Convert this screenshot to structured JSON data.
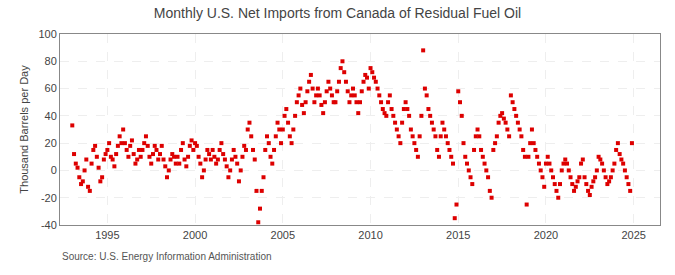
{
  "chart_data": {
    "type": "scatter",
    "title": "Monthly U.S. Net Imports from Canada of Residual Fuel Oil",
    "y_label": "Thousand Barrels per Day",
    "annotations": [
      "Source: U.S. Energy Information Administration"
    ],
    "color": "#DD0000",
    "marker": "square",
    "grid": true,
    "xlim": [
      1992.3,
      2026.5
    ],
    "xticks": [
      1995,
      2000,
      2005,
      2010,
      2015,
      2020,
      2025
    ],
    "ylim": [
      -40,
      100
    ],
    "yticks": [
      -40,
      -20,
      0,
      20,
      40,
      60,
      80,
      100
    ],
    "x": [
      1993.0,
      1993.1,
      1993.2,
      1993.3,
      1993.4,
      1993.5,
      1993.6,
      1993.7,
      1993.8,
      1993.9,
      1994.0,
      1994.1,
      1994.2,
      1994.3,
      1994.4,
      1994.5,
      1994.6,
      1994.7,
      1994.8,
      1994.9,
      1995.0,
      1995.1,
      1995.2,
      1995.3,
      1995.4,
      1995.5,
      1995.6,
      1995.7,
      1995.8,
      1995.9,
      1996.0,
      1996.1,
      1996.2,
      1996.3,
      1996.4,
      1996.5,
      1996.6,
      1996.7,
      1996.8,
      1996.9,
      1997.0,
      1997.1,
      1997.2,
      1997.3,
      1997.4,
      1997.5,
      1997.6,
      1997.7,
      1997.8,
      1997.9,
      1998.0,
      1998.1,
      1998.2,
      1998.3,
      1998.4,
      1998.5,
      1998.6,
      1998.7,
      1998.8,
      1998.9,
      1999.0,
      1999.1,
      1999.2,
      1999.3,
      1999.4,
      1999.5,
      1999.6,
      1999.7,
      1999.8,
      1999.9,
      2000.0,
      2000.1,
      2000.2,
      2000.3,
      2000.4,
      2000.5,
      2000.6,
      2000.7,
      2000.8,
      2000.9,
      2001.0,
      2001.1,
      2001.2,
      2001.3,
      2001.4,
      2001.5,
      2001.6,
      2001.7,
      2001.8,
      2001.9,
      2002.0,
      2002.1,
      2002.2,
      2002.3,
      2002.4,
      2002.5,
      2002.6,
      2002.7,
      2002.8,
      2002.9,
      2003.0,
      2003.1,
      2003.2,
      2003.3,
      2003.4,
      2003.5,
      2003.6,
      2003.7,
      2003.8,
      2003.9,
      2004.0,
      2004.1,
      2004.2,
      2004.3,
      2004.4,
      2004.5,
      2004.6,
      2004.7,
      2004.8,
      2004.9,
      2005.0,
      2005.1,
      2005.2,
      2005.3,
      2005.4,
      2005.5,
      2005.6,
      2005.7,
      2005.8,
      2005.9,
      2006.0,
      2006.1,
      2006.2,
      2006.3,
      2006.4,
      2006.5,
      2006.6,
      2006.7,
      2006.8,
      2006.9,
      2007.0,
      2007.1,
      2007.2,
      2007.3,
      2007.4,
      2007.5,
      2007.6,
      2007.7,
      2007.8,
      2007.9,
      2008.0,
      2008.1,
      2008.2,
      2008.3,
      2008.4,
      2008.5,
      2008.6,
      2008.7,
      2008.8,
      2008.9,
      2009.0,
      2009.1,
      2009.2,
      2009.3,
      2009.4,
      2009.5,
      2009.6,
      2009.7,
      2009.8,
      2009.9,
      2010.0,
      2010.1,
      2010.2,
      2010.3,
      2010.4,
      2010.5,
      2010.6,
      2010.7,
      2010.8,
      2010.9,
      2011.0,
      2011.1,
      2011.2,
      2011.3,
      2011.4,
      2011.5,
      2011.6,
      2011.7,
      2011.8,
      2011.9,
      2012.0,
      2012.1,
      2012.2,
      2012.3,
      2012.4,
      2012.5,
      2012.6,
      2012.7,
      2012.8,
      2012.9,
      2013.0,
      2013.1,
      2013.2,
      2013.3,
      2013.4,
      2013.5,
      2013.6,
      2013.7,
      2013.8,
      2013.9,
      2014.0,
      2014.1,
      2014.2,
      2014.3,
      2014.4,
      2014.5,
      2014.6,
      2014.7,
      2014.8,
      2014.9,
      2015.0,
      2015.1,
      2015.2,
      2015.3,
      2015.4,
      2015.5,
      2015.6,
      2015.7,
      2015.8,
      2015.9,
      2016.0,
      2016.1,
      2016.2,
      2016.3,
      2016.4,
      2016.5,
      2016.6,
      2016.7,
      2016.8,
      2016.9,
      2017.0,
      2017.1,
      2017.2,
      2017.3,
      2017.4,
      2017.5,
      2017.6,
      2017.7,
      2017.8,
      2017.9,
      2018.0,
      2018.1,
      2018.2,
      2018.3,
      2018.4,
      2018.5,
      2018.6,
      2018.7,
      2018.8,
      2018.9,
      2019.0,
      2019.1,
      2019.2,
      2019.3,
      2019.4,
      2019.5,
      2019.6,
      2019.7,
      2019.8,
      2019.9,
      2020.0,
      2020.1,
      2020.2,
      2020.3,
      2020.4,
      2020.5,
      2020.6,
      2020.7,
      2020.8,
      2020.9,
      2021.0,
      2021.1,
      2021.2,
      2021.3,
      2021.4,
      2021.5,
      2021.6,
      2021.7,
      2021.8,
      2021.9,
      2022.0,
      2022.1,
      2022.2,
      2022.3,
      2022.4,
      2022.5,
      2022.6,
      2022.7,
      2022.8,
      2022.9,
      2023.0,
      2023.1,
      2023.2,
      2023.3,
      2023.4,
      2023.5,
      2023.6,
      2023.7,
      2023.8,
      2023.9,
      2024.0,
      2024.1,
      2024.2,
      2024.3,
      2024.4,
      2024.5,
      2024.6,
      2024.7,
      2024.8,
      2024.9
    ],
    "values": [
      33,
      12,
      5,
      2,
      -5,
      -10,
      -8,
      0,
      8,
      -12,
      -15,
      5,
      15,
      18,
      10,
      2,
      -8,
      -5,
      8,
      12,
      15,
      20,
      10,
      8,
      3,
      12,
      18,
      25,
      20,
      30,
      20,
      15,
      10,
      18,
      22,
      12,
      5,
      8,
      15,
      10,
      15,
      20,
      25,
      18,
      10,
      5,
      12,
      18,
      15,
      8,
      12,
      18,
      8,
      3,
      -5,
      0,
      8,
      12,
      10,
      5,
      10,
      5,
      15,
      20,
      8,
      3,
      10,
      18,
      22,
      15,
      20,
      18,
      10,
      5,
      -5,
      0,
      8,
      15,
      12,
      8,
      15,
      10,
      5,
      8,
      15,
      20,
      12,
      8,
      3,
      -5,
      0,
      8,
      15,
      10,
      5,
      -8,
      0,
      10,
      18,
      15,
      30,
      35,
      25,
      15,
      8,
      -15,
      -38,
      -28,
      -15,
      -5,
      15,
      25,
      20,
      10,
      5,
      15,
      25,
      35,
      30,
      20,
      30,
      40,
      45,
      35,
      25,
      20,
      30,
      40,
      50,
      55,
      60,
      48,
      42,
      50,
      58,
      65,
      70,
      60,
      50,
      55,
      60,
      55,
      48,
      42,
      50,
      58,
      65,
      60,
      55,
      50,
      50,
      58,
      65,
      75,
      80,
      72,
      65,
      58,
      50,
      55,
      60,
      55,
      50,
      42,
      50,
      58,
      65,
      70,
      68,
      60,
      75,
      72,
      68,
      65,
      60,
      55,
      50,
      45,
      42,
      40,
      50,
      55,
      45,
      40,
      35,
      30,
      25,
      20,
      35,
      45,
      50,
      45,
      40,
      30,
      25,
      20,
      15,
      10,
      25,
      40,
      88,
      60,
      55,
      45,
      40,
      35,
      30,
      25,
      15,
      10,
      25,
      35,
      30,
      25,
      20,
      15,
      10,
      5,
      -35,
      -25,
      58,
      50,
      40,
      20,
      10,
      5,
      0,
      -5,
      -10,
      15,
      25,
      30,
      25,
      15,
      10,
      5,
      0,
      -5,
      -15,
      -20,
      15,
      20,
      25,
      35,
      40,
      42,
      38,
      35,
      30,
      25,
      55,
      50,
      45,
      40,
      35,
      30,
      25,
      15,
      10,
      -25,
      10,
      20,
      30,
      20,
      15,
      10,
      5,
      0,
      -5,
      -12,
      5,
      10,
      5,
      0,
      -5,
      -10,
      -15,
      -20,
      -10,
      0,
      5,
      8,
      5,
      0,
      -5,
      -10,
      -15,
      -12,
      -8,
      -5,
      5,
      8,
      -5,
      -10,
      -15,
      -18,
      -12,
      -8,
      -5,
      0,
      10,
      8,
      5,
      0,
      -5,
      -10,
      -8,
      -5,
      0,
      5,
      15,
      20,
      12,
      8,
      5,
      0,
      -5,
      -10,
      -15,
      20
    ]
  }
}
